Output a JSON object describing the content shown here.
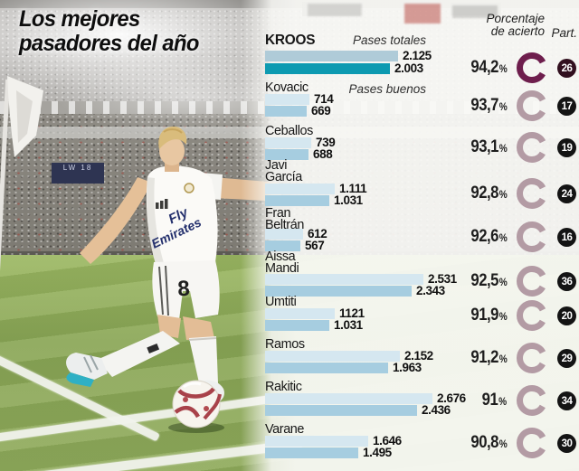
{
  "title": {
    "line1": "Los mejores",
    "line2": "pasadores del año"
  },
  "headers": {
    "pases_totales": "Pases totales",
    "pases_buenos": "Pases buenos",
    "porcentaje_line1": "Porcentaje",
    "porcentaje_line2": "de acierto",
    "part": "Part.",
    "percent_symbol": "%"
  },
  "photo": {
    "led_text": "LW 18",
    "player_number": "8",
    "shirt_sponsor_line1": "Fly",
    "shirt_sponsor_line2": "Emirates"
  },
  "colors": {
    "bar_totales": "#d5e7f0",
    "bar_buenos": "#a6cde0",
    "bar_totales_highlight": "#afcbd8",
    "bar_buenos_highlight": "#0d9ab1",
    "ring": "#b39ba4",
    "ring_highlight": "#6e1e4d",
    "badge": "#141414",
    "badge_highlight": "#32101f"
  },
  "chart_data": {
    "type": "bar",
    "orientation": "horizontal",
    "series_labels": [
      "Pases totales",
      "Pases buenos"
    ],
    "value_axis_max": 2676,
    "players": [
      {
        "name_lines": [
          "KROOS"
        ],
        "highlight": true,
        "totales": 2125,
        "totales_label": "2.125",
        "buenos": 2003,
        "buenos_label": "2.003",
        "pct": 94.2,
        "pct_label": "94,2",
        "part": "26"
      },
      {
        "name_lines": [
          "Kovacic"
        ],
        "highlight": false,
        "totales": 714,
        "totales_label": "714",
        "buenos": 669,
        "buenos_label": "669",
        "pct": 93.7,
        "pct_label": "93,7",
        "part": "17"
      },
      {
        "name_lines": [
          "Ceballos"
        ],
        "highlight": false,
        "totales": 739,
        "totales_label": "739",
        "buenos": 688,
        "buenos_label": "688",
        "pct": 93.1,
        "pct_label": "93,1",
        "part": "19"
      },
      {
        "name_lines": [
          "Javi",
          "García"
        ],
        "highlight": false,
        "totales": 1111,
        "totales_label": "1.111",
        "buenos": 1031,
        "buenos_label": "1.031",
        "pct": 92.8,
        "pct_label": "92,8",
        "part": "24"
      },
      {
        "name_lines": [
          "Fran",
          "Beltrán"
        ],
        "highlight": false,
        "totales": 612,
        "totales_label": "612",
        "buenos": 567,
        "buenos_label": "567",
        "pct": 92.6,
        "pct_label": "92,6",
        "part": "16"
      },
      {
        "name_lines": [
          "Aissa",
          "Mandi"
        ],
        "highlight": false,
        "totales": 2531,
        "totales_label": "2.531",
        "buenos": 2343,
        "buenos_label": "2.343",
        "pct": 92.5,
        "pct_label": "92,5",
        "part": "36"
      },
      {
        "name_lines": [
          "Umtiti"
        ],
        "highlight": false,
        "totales": 1121,
        "totales_label": "1121",
        "buenos": 1031,
        "buenos_label": "1.031",
        "pct": 91.9,
        "pct_label": "91,9",
        "part": "20"
      },
      {
        "name_lines": [
          "Ramos"
        ],
        "highlight": false,
        "totales": 2152,
        "totales_label": "2.152",
        "buenos": 1963,
        "buenos_label": "1.963",
        "pct": 91.2,
        "pct_label": "91,2",
        "part": "29"
      },
      {
        "name_lines": [
          "Rakitic"
        ],
        "highlight": false,
        "totales": 2676,
        "totales_label": "2.676",
        "buenos": 2436,
        "buenos_label": "2.436",
        "pct": 91.0,
        "pct_label": "91",
        "part": "34"
      },
      {
        "name_lines": [
          "Varane"
        ],
        "highlight": false,
        "totales": 1646,
        "totales_label": "1.646",
        "buenos": 1495,
        "buenos_label": "1.495",
        "pct": 90.8,
        "pct_label": "90,8",
        "part": "30"
      }
    ]
  }
}
